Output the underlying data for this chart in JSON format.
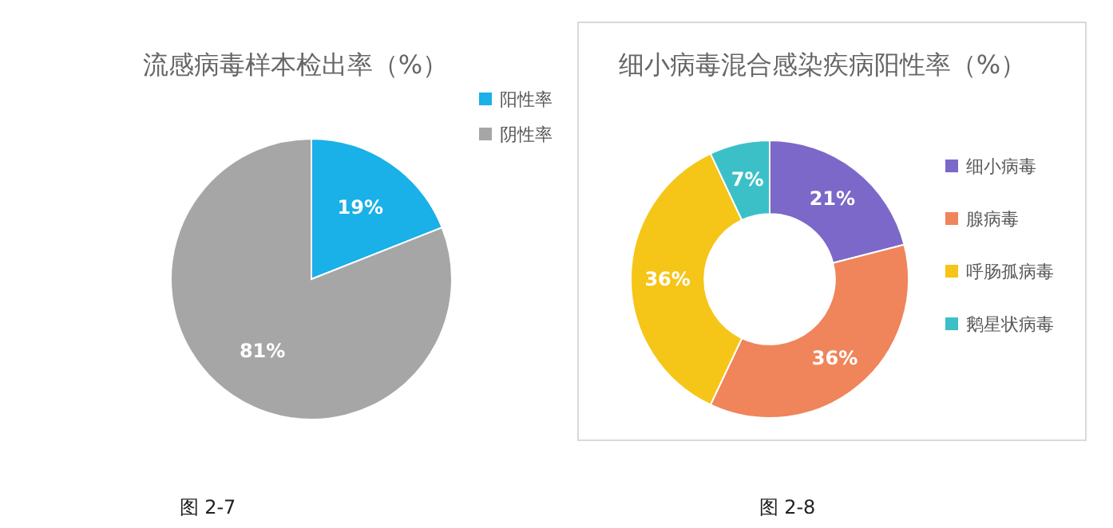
{
  "chart_data": [
    {
      "type": "pie",
      "title": "流感病毒样本检出率（%）",
      "categories": [
        "阳性率",
        "阴性率"
      ],
      "values": [
        19,
        81
      ],
      "colors": [
        "#1ab0e8",
        "#a6a6a6"
      ],
      "value_labels": [
        "19%",
        "81%"
      ],
      "legend": "top right",
      "annotations": [
        "图 2-7"
      ]
    },
    {
      "type": "donut",
      "title": "细小病毒混合感染疾病阳性率（%）",
      "categories": [
        "细小病毒",
        "腺病毒",
        "呼肠孤病毒",
        "鹅星状病毒"
      ],
      "values": [
        21,
        36,
        36,
        7
      ],
      "colors": [
        "#7b68c8",
        "#f0845a",
        "#f5c518",
        "#3cc0c8"
      ],
      "value_labels": [
        "21%",
        "36%",
        "36%",
        "7%"
      ],
      "legend": "right",
      "annotations": [
        "图 2-8"
      ]
    }
  ]
}
